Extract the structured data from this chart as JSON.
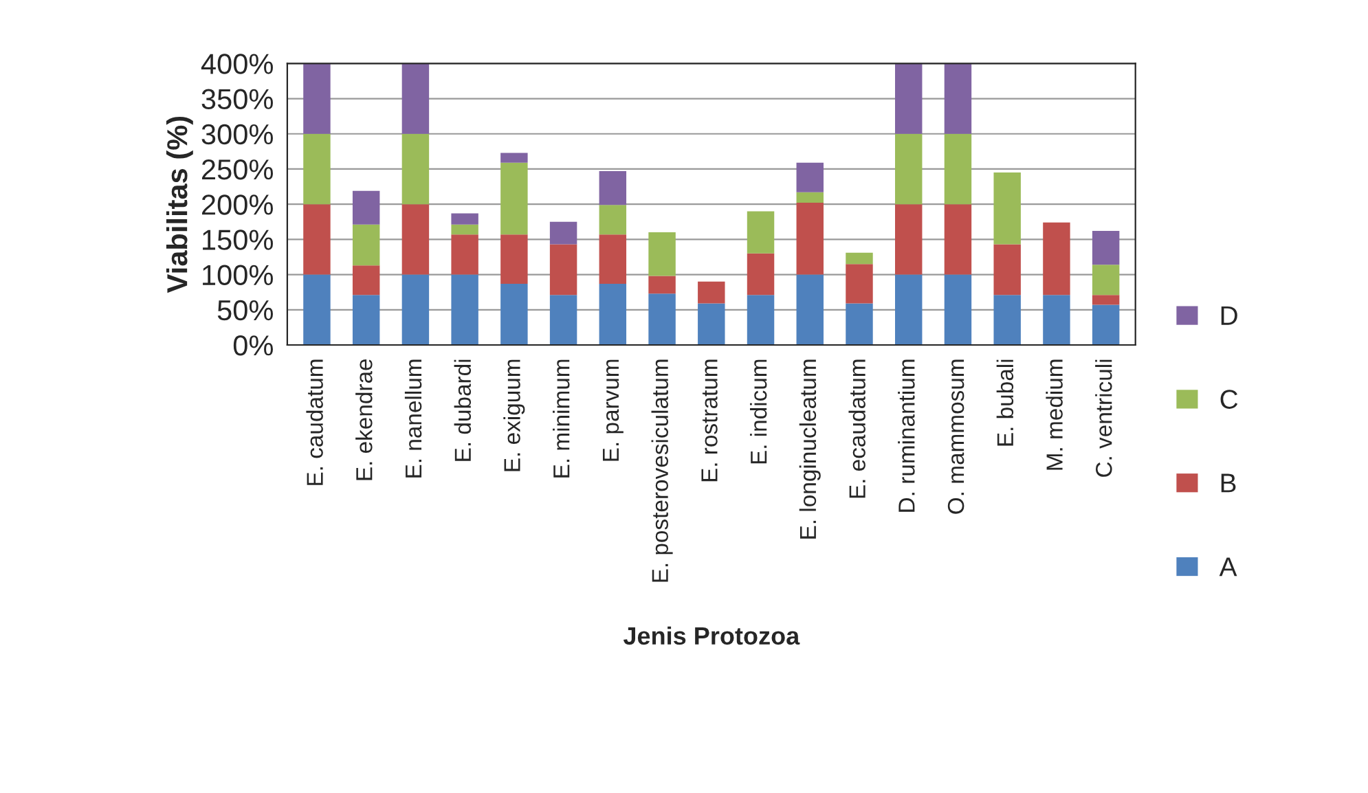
{
  "chart_data": {
    "type": "bar",
    "stacked": true,
    "xlabel": "Jenis Protozoa",
    "ylabel": "Viabilitas (%)",
    "categories": [
      "E. caudatum",
      "E. ekendrae",
      "E. nanellum",
      "E. dubardi",
      "E. exiguum",
      "E. minimum",
      "E. parvum",
      "E. posterovesiculatum",
      "E. rostratum",
      "E. indicum",
      "E. longinucleatum",
      "E. ecaudatum",
      "D. ruminantium",
      "O. mammosum",
      "E. bubali",
      "M. medium",
      "C. ventriculi"
    ],
    "series": [
      {
        "name": "A",
        "color": "#4f81bd",
        "values": [
          100,
          71,
          100,
          100,
          87,
          71,
          87,
          73,
          59,
          71,
          100,
          59,
          100,
          100,
          71,
          71,
          57
        ]
      },
      {
        "name": "B",
        "color": "#c0504d",
        "values": [
          100,
          42,
          100,
          57,
          70,
          72,
          70,
          25,
          31,
          59,
          102,
          56,
          100,
          100,
          72,
          103,
          14
        ]
      },
      {
        "name": "C",
        "color": "#9bbb59",
        "values": [
          100,
          58,
          100,
          14,
          102,
          0,
          42,
          62,
          0,
          60,
          15,
          16,
          100,
          100,
          102,
          0,
          43
        ]
      },
      {
        "name": "D",
        "color": "#8064a2",
        "values": [
          100,
          48,
          100,
          16,
          14,
          32,
          48,
          0,
          0,
          0,
          42,
          0,
          100,
          100,
          0,
          0,
          48
        ]
      }
    ],
    "ylim": [
      0,
      400
    ],
    "yticks": [
      {
        "value": 0,
        "label": "0%"
      },
      {
        "value": 50,
        "label": "50%"
      },
      {
        "value": 100,
        "label": "100%"
      },
      {
        "value": 150,
        "label": "150%"
      },
      {
        "value": 200,
        "label": "200%"
      },
      {
        "value": 250,
        "label": "250%"
      },
      {
        "value": 300,
        "label": "300%"
      },
      {
        "value": 350,
        "label": "350%"
      },
      {
        "value": 400,
        "label": "400%"
      }
    ],
    "grid": "y",
    "legend": "right"
  }
}
